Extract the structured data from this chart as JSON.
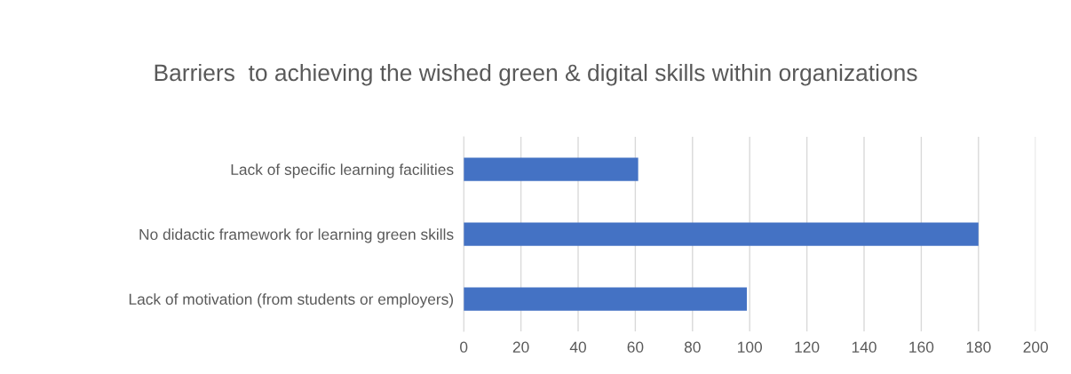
{
  "chart_data": {
    "type": "bar",
    "orientation": "horizontal",
    "title": "Barriers  to achieving the wished green & digital skills within organizations",
    "categories": [
      "Lack of specific learning facilities",
      "No didactic framework for learning green skills",
      "Lack of motivation (from students or employers)"
    ],
    "values": [
      61,
      180,
      99
    ],
    "color": "#4472c4",
    "xlim": [
      0,
      200
    ],
    "xticks": [
      0,
      20,
      40,
      60,
      80,
      100,
      120,
      140,
      160,
      180,
      200
    ],
    "grid": "x",
    "legend": false
  }
}
